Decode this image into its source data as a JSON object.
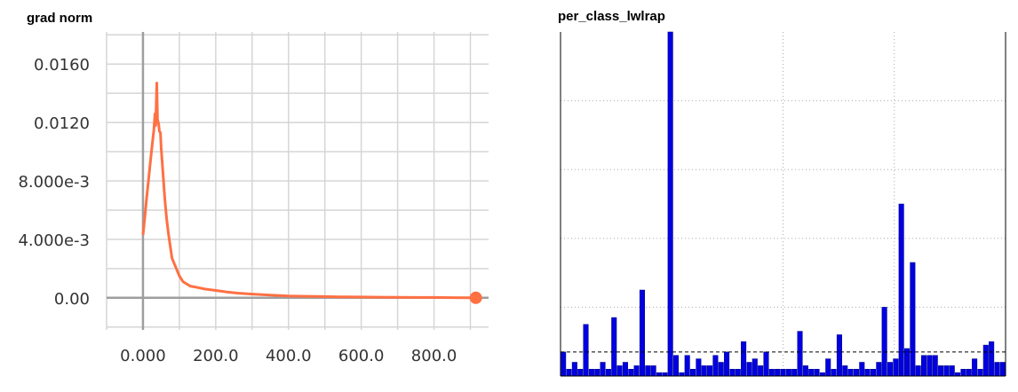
{
  "chart_data": [
    {
      "type": "line",
      "title": "grad norm",
      "xlabel": "",
      "ylabel": "",
      "xlim": [
        -100,
        950
      ],
      "ylim": [
        -0.0022,
        0.0182
      ],
      "x_ticks": [
        "0.000",
        "200.0",
        "400.0",
        "600.0",
        "800.0"
      ],
      "x_tick_values": [
        0,
        200,
        400,
        600,
        800
      ],
      "y_ticks": [
        "0.00",
        "4.000e-3",
        "8.000e-3",
        "0.0120",
        "0.0160"
      ],
      "y_tick_values": [
        0,
        0.004,
        0.008,
        0.012,
        0.016
      ],
      "grid": true,
      "color": "#ff7043",
      "series": [
        {
          "x": [
            0,
            5,
            10,
            15,
            20,
            25,
            30,
            33,
            35,
            38,
            40,
            43,
            45,
            48,
            50,
            55,
            60,
            65,
            70,
            75,
            80,
            90,
            100,
            110,
            120,
            130,
            150,
            170,
            200,
            230,
            260,
            300,
            350,
            400,
            450,
            500,
            550,
            600,
            650,
            700,
            750,
            800,
            850,
            900
          ],
          "y": [
            0.0043,
            0.0055,
            0.0068,
            0.008,
            0.0092,
            0.0104,
            0.0115,
            0.0126,
            0.0118,
            0.0147,
            0.0122,
            0.0119,
            0.0114,
            0.0113,
            0.0103,
            0.0085,
            0.0068,
            0.0054,
            0.0044,
            0.0035,
            0.0027,
            0.0021,
            0.0015,
            0.0011,
            0.00095,
            0.0008,
            0.0007,
            0.0006,
            0.0005,
            0.0004,
            0.00032,
            0.00025,
            0.00018,
            0.00012,
            0.0001,
            8e-05,
            6e-05,
            5e-05,
            4e-05,
            3e-05,
            2e-05,
            2e-05,
            1e-05,
            0.0
          ]
        }
      ],
      "last_point": {
        "x": 915,
        "y": 0.0
      }
    },
    {
      "type": "bar",
      "title": "per_class_lwlrap",
      "color": "#0000e0",
      "reference_line": 0.07,
      "ylim": [
        0,
        1
      ],
      "grid": true,
      "values": [
        0.07,
        0.02,
        0.04,
        0.02,
        0.15,
        0.02,
        0.02,
        0.04,
        0.02,
        0.17,
        0.03,
        0.04,
        0.02,
        0.03,
        0.25,
        0.03,
        0.03,
        0.01,
        0.01,
        1.0,
        0.06,
        0.01,
        0.06,
        0.02,
        0.05,
        0.03,
        0.03,
        0.06,
        0.04,
        0.07,
        0.02,
        0.02,
        0.1,
        0.04,
        0.05,
        0.03,
        0.07,
        0.02,
        0.02,
        0.02,
        0.02,
        0.02,
        0.13,
        0.03,
        0.02,
        0.02,
        0.01,
        0.05,
        0.02,
        0.12,
        0.03,
        0.02,
        0.02,
        0.04,
        0.02,
        0.02,
        0.04,
        0.2,
        0.04,
        0.05,
        0.5,
        0.08,
        0.33,
        0.03,
        0.06,
        0.06,
        0.06,
        0.03,
        0.03,
        0.03,
        0.01,
        0.02,
        0.02,
        0.05,
        0.02,
        0.09,
        0.1,
        0.04,
        0.04
      ]
    }
  ]
}
